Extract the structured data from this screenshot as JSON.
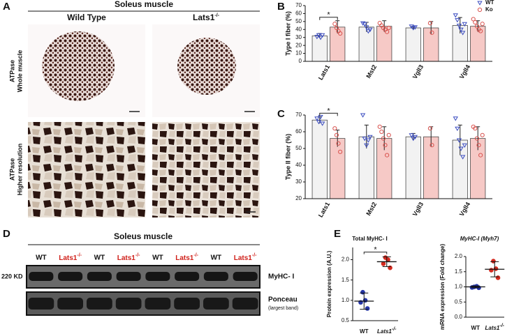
{
  "figure": {
    "A": {
      "label": "A",
      "title": "Soleus muscle",
      "col1": "Wild Type",
      "col2": {
        "base": "Lats1",
        "sup": "-/-"
      },
      "row1": [
        "ATPase",
        "Whole muscle"
      ],
      "row2": [
        "ATPase",
        "Higher resolution"
      ]
    },
    "B": "B",
    "C": "C",
    "D": {
      "label": "D",
      "title": "Soleus muscle",
      "lanes": [
        "WT",
        {
          "base": "Lats1",
          "sup": "-/-"
        },
        "WT",
        {
          "base": "Lats1",
          "sup": "-/-"
        },
        "WT",
        {
          "base": "Lats1",
          "sup": "-/-"
        },
        "WT",
        {
          "base": "Lats1",
          "sup": "-/-"
        }
      ],
      "marker": "220 KD",
      "band1": "MyHC- I",
      "band2": [
        "Ponceau",
        "(largest band)"
      ]
    },
    "E": "E"
  },
  "chart_data": [
    {
      "type": "bar",
      "y_label": "Type I fiber (%)",
      "categories": [
        "Lats1",
        "Mst2",
        "Vgll3",
        "Vgll4"
      ],
      "series": [
        {
          "name": "WT",
          "color": "#3b4cc0",
          "fill": "#f2f2f2",
          "marker": "triangle",
          "values": [
            32,
            43,
            42,
            45
          ],
          "errors": [
            3,
            6,
            2,
            10
          ],
          "points": [
            [
              31,
              33,
              30,
              33
            ],
            [
              48,
              47,
              43,
              38,
              40
            ],
            [
              44,
              42,
              43
            ],
            [
              58,
              52,
              45,
              40,
              36,
              47
            ]
          ]
        },
        {
          "name": "Ko",
          "color": "#d9534f",
          "fill": "#f6c9c6",
          "marker": "circle",
          "values": [
            43,
            44,
            42,
            44
          ],
          "errors": [
            8,
            7,
            8,
            7
          ],
          "points": [
            [
              47,
              42,
              38,
              35
            ],
            [
              48,
              45,
              42,
              40,
              37,
              42
            ],
            [
              48,
              36
            ],
            [
              53,
              49,
              44,
              40,
              38,
              47
            ]
          ]
        }
      ],
      "ylim": [
        0,
        70
      ],
      "yticks": [
        0,
        10,
        20,
        30,
        40,
        50,
        60,
        70
      ],
      "annotations": [
        "*"
      ],
      "legend": "upper right"
    },
    {
      "type": "bar",
      "y_label": "Type II fiber (%)",
      "categories": [
        "Lats1",
        "Mst2",
        "Vgll3",
        "Vgll4"
      ],
      "series": [
        {
          "name": "WT",
          "color": "#3b4cc0",
          "fill": "#f2f2f2",
          "marker": "triangle",
          "values": [
            67,
            57,
            57,
            55
          ],
          "errors": [
            2,
            7,
            2,
            9
          ],
          "points": [
            [
              68,
              66,
              69,
              65
            ],
            [
              70,
              56,
              52,
              55,
              57
            ],
            [
              58,
              56,
              57
            ],
            [
              68,
              62,
              55,
              50,
              45,
              52
            ]
          ]
        },
        {
          "name": "Ko",
          "color": "#d9534f",
          "fill": "#f6c9c6",
          "marker": "circle",
          "values": [
            56,
            56,
            57,
            56
          ],
          "errors": [
            5,
            7,
            6,
            7
          ],
          "points": [
            [
              62,
              58,
              53,
              48
            ],
            [
              63,
              60,
              56,
              52,
              46,
              58
            ],
            [
              62,
              52
            ],
            [
              63,
              62,
              56,
              52,
              46,
              58
            ]
          ]
        }
      ],
      "ylim": [
        20,
        70
      ],
      "yticks": [
        20,
        30,
        40,
        50,
        60,
        70
      ],
      "annotations": [
        "*"
      ]
    },
    {
      "type": "dot",
      "title": "Total MyHC- I",
      "y_label": "Protein expression (A.U.)",
      "categories": [
        "WT",
        {
          "base": "Lats1",
          "sup": "-/-"
        }
      ],
      "colors": [
        "#2536a8",
        "#d42a1f"
      ],
      "values": [
        0.98,
        1.95
      ],
      "errors": [
        0.2,
        0.12
      ],
      "points": [
        [
          1.2,
          1.0,
          0.95,
          0.8
        ],
        [
          2.05,
          2.0,
          1.9,
          1.8
        ]
      ],
      "ylim": [
        0.5,
        2.3
      ],
      "yticks": [
        0.5,
        {
          "value": 1,
          "label": "1.0"
        },
        1.5,
        {
          "value": 2,
          "label": "2.0"
        }
      ],
      "annotations": [
        "*"
      ]
    },
    {
      "type": "dot",
      "title": "MyHC-I (Myh7)",
      "y_label": "mRNA expression (Fold change)",
      "categories": [
        "WT",
        {
          "base": "Lats1",
          "sup": "-/-"
        }
      ],
      "colors": [
        "#2536a8",
        "#d42a1f"
      ],
      "values": [
        1.0,
        1.58
      ],
      "errors": [
        0.03,
        0.25
      ],
      "points": [
        [
          1.0,
          1.02,
          0.98,
          0.97
        ],
        [
          1.85,
          1.6,
          1.55,
          1.3
        ]
      ],
      "ylim": [
        0,
        2
      ],
      "yticks": [
        {
          "value": 0,
          "label": "0.0"
        },
        0.5,
        {
          "value": 1,
          "label": "1.0"
        },
        1.5,
        {
          "value": 2,
          "label": "2.0"
        }
      ]
    }
  ]
}
